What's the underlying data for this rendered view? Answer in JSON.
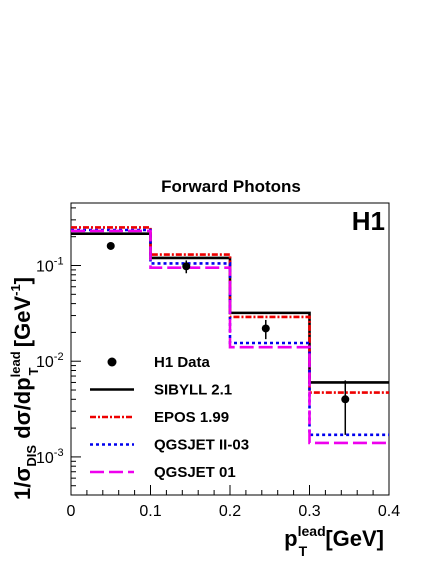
{
  "chart_data": {
    "type": "line",
    "title": "Forward Photons",
    "experiment_label": "H1",
    "xlabel": {
      "main": "p",
      "sub": "T",
      "sup": "lead",
      "unit": " [GeV]"
    },
    "ylabel": {
      "p1": "1/σ",
      "p1sub": "DIS",
      "p2": " dσ/dp",
      "p2sub": "T",
      "p2sup": "lead",
      "p3": " [GeV",
      "p3sup": "-1",
      "p4": "]"
    },
    "xlim": [
      0,
      0.4
    ],
    "ylim": [
      0.0004,
      0.45
    ],
    "yscale": "log",
    "x_ticks": [
      "0",
      "0.1",
      "0.2",
      "0.3",
      "0.4"
    ],
    "x_tick_values": [
      0,
      0.1,
      0.2,
      0.3,
      0.4
    ],
    "y_ticks": [
      {
        "value": 0.1,
        "base": "10",
        "exp": "-1"
      },
      {
        "value": 0.01,
        "base": "10",
        "exp": "-2"
      },
      {
        "value": 0.001,
        "base": "10",
        "exp": "-3"
      }
    ],
    "bin_edges": [
      0,
      0.1,
      0.2,
      0.3,
      0.4
    ],
    "data": {
      "name": "H1 Data",
      "x": [
        0.05,
        0.145,
        0.245,
        0.345
      ],
      "y": [
        0.16,
        0.098,
        0.022,
        0.004
      ],
      "err_low": [
        0.01,
        0.015,
        0.005,
        0.0023
      ],
      "err_high": [
        0.01,
        0.015,
        0.005,
        0.0023
      ]
    },
    "series": [
      {
        "name": "SIBYLL 2.1",
        "values": [
          0.215,
          0.12,
          0.032,
          0.006
        ],
        "color": "#000000",
        "dash": ""
      },
      {
        "name": "EPOS 1.99",
        "values": [
          0.25,
          0.13,
          0.029,
          0.0047
        ],
        "color": "#ee0000",
        "dash": "6,2,2,2"
      },
      {
        "name": "QGSJET II-03",
        "values": [
          0.235,
          0.105,
          0.0155,
          0.0017
        ],
        "color": "#0000ee",
        "dash": "3,3"
      },
      {
        "name": "QGSJET 01",
        "values": [
          0.23,
          0.095,
          0.014,
          0.0014
        ],
        "color": "#ee00ee",
        "dash": "14,5"
      }
    ]
  }
}
